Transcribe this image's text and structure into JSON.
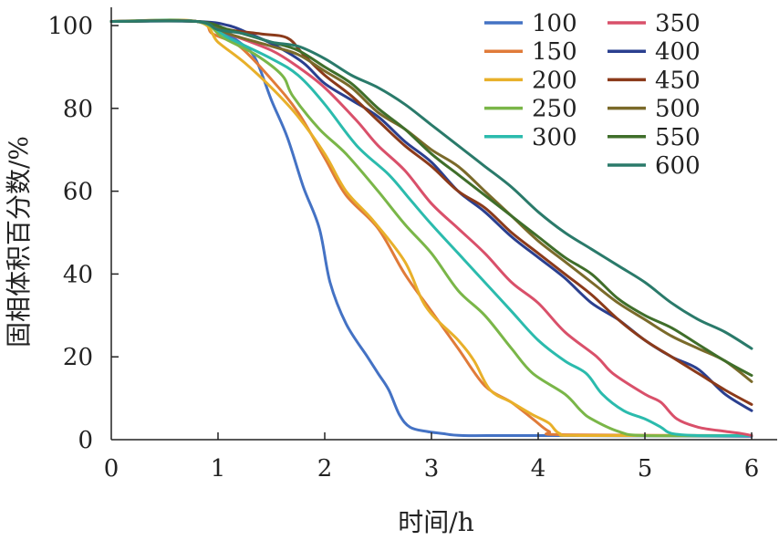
{
  "chart_data": {
    "type": "line",
    "xlabel": "时间/h",
    "ylabel": "固相体积百分数/%",
    "xlim": [
      0,
      6
    ],
    "ylim": [
      0,
      100
    ],
    "x_ticks": [
      "0",
      "1",
      "2",
      "3",
      "4",
      "5",
      "6"
    ],
    "y_ticks": [
      "0",
      "20",
      "40",
      "60",
      "80",
      "100"
    ],
    "grid": false,
    "legend_position": "top-right",
    "series": [
      {
        "name": "100",
        "color": "#4472c4",
        "points": [
          [
            0,
            101
          ],
          [
            0.8,
            101
          ],
          [
            1.0,
            99
          ],
          [
            1.2,
            96
          ],
          [
            1.35,
            92
          ],
          [
            1.5,
            82
          ],
          [
            1.65,
            73
          ],
          [
            1.8,
            61
          ],
          [
            1.95,
            51
          ],
          [
            2.05,
            38
          ],
          [
            2.2,
            28
          ],
          [
            2.4,
            20
          ],
          [
            2.5,
            16
          ],
          [
            2.6,
            12
          ],
          [
            2.7,
            6
          ],
          [
            2.8,
            3
          ],
          [
            2.95,
            2
          ],
          [
            3.1,
            1.5
          ],
          [
            3.3,
            1
          ],
          [
            4,
            1
          ],
          [
            6,
            0.8
          ]
        ]
      },
      {
        "name": "150",
        "color": "#e07b39",
        "points": [
          [
            0,
            101
          ],
          [
            0.8,
            101
          ],
          [
            0.95,
            98
          ],
          [
            1.2,
            95
          ],
          [
            1.5,
            87
          ],
          [
            1.75,
            79
          ],
          [
            2.0,
            68
          ],
          [
            2.2,
            59
          ],
          [
            2.5,
            51
          ],
          [
            2.75,
            40
          ],
          [
            3.0,
            31
          ],
          [
            3.25,
            22
          ],
          [
            3.5,
            13
          ],
          [
            3.75,
            9
          ],
          [
            3.95,
            5
          ],
          [
            4.1,
            2
          ],
          [
            4.25,
            1.2
          ],
          [
            6,
            1
          ]
        ]
      },
      {
        "name": "200",
        "color": "#e8b02a",
        "points": [
          [
            0,
            101
          ],
          [
            0.8,
            101
          ],
          [
            1.0,
            96
          ],
          [
            1.25,
            91
          ],
          [
            1.5,
            85
          ],
          [
            1.75,
            78
          ],
          [
            2.0,
            69
          ],
          [
            2.2,
            60
          ],
          [
            2.45,
            53
          ],
          [
            2.75,
            43
          ],
          [
            2.95,
            32
          ],
          [
            3.25,
            24
          ],
          [
            3.4,
            19
          ],
          [
            3.55,
            12
          ],
          [
            3.75,
            9
          ],
          [
            3.95,
            6
          ],
          [
            4.1,
            4
          ],
          [
            4.2,
            1.5
          ],
          [
            4.4,
            1
          ],
          [
            6,
            1
          ]
        ]
      },
      {
        "name": "250",
        "color": "#7ab648",
        "points": [
          [
            0,
            101
          ],
          [
            0.8,
            101
          ],
          [
            1.05,
            97
          ],
          [
            1.35,
            93
          ],
          [
            1.6,
            88
          ],
          [
            1.7,
            83
          ],
          [
            1.95,
            75
          ],
          [
            2.2,
            69
          ],
          [
            2.5,
            60
          ],
          [
            2.75,
            52
          ],
          [
            3.0,
            45
          ],
          [
            3.25,
            36
          ],
          [
            3.5,
            30
          ],
          [
            3.75,
            22
          ],
          [
            3.95,
            16
          ],
          [
            4.25,
            11
          ],
          [
            4.4,
            7
          ],
          [
            4.5,
            5
          ],
          [
            4.75,
            2
          ],
          [
            5.0,
            1
          ],
          [
            6,
            1
          ]
        ]
      },
      {
        "name": "300",
        "color": "#2bbbad",
        "points": [
          [
            0,
            101
          ],
          [
            0.8,
            101
          ],
          [
            1.1,
            97
          ],
          [
            1.5,
            92
          ],
          [
            1.75,
            88
          ],
          [
            2.0,
            81
          ],
          [
            2.3,
            71
          ],
          [
            2.6,
            64
          ],
          [
            2.8,
            58
          ],
          [
            3.0,
            52
          ],
          [
            3.25,
            45
          ],
          [
            3.5,
            38
          ],
          [
            3.75,
            31
          ],
          [
            4.0,
            24
          ],
          [
            4.25,
            19
          ],
          [
            4.45,
            16
          ],
          [
            4.6,
            11
          ],
          [
            4.8,
            7
          ],
          [
            5.0,
            5
          ],
          [
            5.15,
            3
          ],
          [
            5.25,
            1.5
          ],
          [
            5.5,
            1
          ],
          [
            6,
            1
          ]
        ]
      },
      {
        "name": "350",
        "color": "#d9506a",
        "points": [
          [
            0,
            101
          ],
          [
            0.8,
            101
          ],
          [
            1.1,
            98
          ],
          [
            1.5,
            94
          ],
          [
            1.75,
            90
          ],
          [
            2.0,
            85
          ],
          [
            2.3,
            77
          ],
          [
            2.5,
            71
          ],
          [
            2.75,
            65
          ],
          [
            3.0,
            57
          ],
          [
            3.25,
            51
          ],
          [
            3.5,
            45
          ],
          [
            3.75,
            38
          ],
          [
            4.0,
            33
          ],
          [
            4.25,
            26
          ],
          [
            4.55,
            20
          ],
          [
            4.7,
            16
          ],
          [
            5.0,
            11
          ],
          [
            5.15,
            9
          ],
          [
            5.3,
            5
          ],
          [
            5.5,
            3
          ],
          [
            5.75,
            2
          ],
          [
            5.9,
            1.5
          ],
          [
            6,
            1
          ]
        ]
      },
      {
        "name": "400",
        "color": "#2a3f8f",
        "points": [
          [
            0,
            101
          ],
          [
            0.8,
            101
          ],
          [
            1.1,
            100
          ],
          [
            1.3,
            98
          ],
          [
            1.55,
            95
          ],
          [
            1.8,
            91
          ],
          [
            2.0,
            86
          ],
          [
            2.25,
            82
          ],
          [
            2.5,
            78
          ],
          [
            2.75,
            72
          ],
          [
            3.0,
            67
          ],
          [
            3.25,
            60
          ],
          [
            3.5,
            55
          ],
          [
            3.75,
            49
          ],
          [
            4.0,
            44
          ],
          [
            4.25,
            39
          ],
          [
            4.5,
            33
          ],
          [
            4.75,
            29
          ],
          [
            5.0,
            24
          ],
          [
            5.25,
            20
          ],
          [
            5.5,
            17
          ],
          [
            5.75,
            11
          ],
          [
            6,
            7
          ]
        ]
      },
      {
        "name": "450",
        "color": "#8b3a1a",
        "points": [
          [
            0,
            101
          ],
          [
            0.8,
            101
          ],
          [
            1.1,
            99
          ],
          [
            1.4,
            98
          ],
          [
            1.65,
            97
          ],
          [
            1.8,
            93
          ],
          [
            2.0,
            88
          ],
          [
            2.25,
            83
          ],
          [
            2.5,
            77
          ],
          [
            2.75,
            71
          ],
          [
            3.0,
            66
          ],
          [
            3.25,
            60
          ],
          [
            3.5,
            56
          ],
          [
            3.75,
            50
          ],
          [
            4.0,
            45
          ],
          [
            4.25,
            40
          ],
          [
            4.5,
            35
          ],
          [
            4.75,
            29
          ],
          [
            5.0,
            24
          ],
          [
            5.25,
            20
          ],
          [
            5.5,
            16
          ],
          [
            5.75,
            12
          ],
          [
            6,
            8.5
          ]
        ]
      },
      {
        "name": "500",
        "color": "#7a6a2a",
        "points": [
          [
            0,
            101
          ],
          [
            0.8,
            101
          ],
          [
            1.1,
            98
          ],
          [
            1.5,
            95
          ],
          [
            1.75,
            93
          ],
          [
            2.0,
            89
          ],
          [
            2.25,
            85
          ],
          [
            2.5,
            79
          ],
          [
            2.75,
            75
          ],
          [
            3.0,
            70
          ],
          [
            3.25,
            66
          ],
          [
            3.5,
            60
          ],
          [
            3.75,
            54
          ],
          [
            4.0,
            48
          ],
          [
            4.25,
            43
          ],
          [
            4.5,
            38
          ],
          [
            4.75,
            33
          ],
          [
            5.0,
            29
          ],
          [
            5.25,
            25
          ],
          [
            5.5,
            22
          ],
          [
            5.75,
            19
          ],
          [
            6,
            14
          ]
        ]
      },
      {
        "name": "550",
        "color": "#3f6e2a",
        "points": [
          [
            0,
            101
          ],
          [
            0.8,
            101
          ],
          [
            1.1,
            99
          ],
          [
            1.5,
            96
          ],
          [
            1.75,
            94
          ],
          [
            2.0,
            90
          ],
          [
            2.25,
            86
          ],
          [
            2.5,
            80
          ],
          [
            2.75,
            75
          ],
          [
            3.0,
            69
          ],
          [
            3.25,
            64
          ],
          [
            3.5,
            59
          ],
          [
            3.75,
            54
          ],
          [
            4.0,
            49
          ],
          [
            4.25,
            44
          ],
          [
            4.5,
            40
          ],
          [
            4.75,
            34
          ],
          [
            5.0,
            30
          ],
          [
            5.25,
            27
          ],
          [
            5.5,
            23
          ],
          [
            5.75,
            19
          ],
          [
            6,
            15.5
          ]
        ]
      },
      {
        "name": "600",
        "color": "#2a7a6a",
        "points": [
          [
            0,
            101
          ],
          [
            0.8,
            101
          ],
          [
            1.0,
            99
          ],
          [
            1.25,
            98
          ],
          [
            1.5,
            96
          ],
          [
            1.75,
            95
          ],
          [
            2.0,
            92
          ],
          [
            2.25,
            88
          ],
          [
            2.5,
            85
          ],
          [
            2.75,
            81
          ],
          [
            3.0,
            76
          ],
          [
            3.25,
            71
          ],
          [
            3.5,
            66
          ],
          [
            3.75,
            61
          ],
          [
            4.0,
            55
          ],
          [
            4.25,
            50
          ],
          [
            4.5,
            46
          ],
          [
            4.75,
            42
          ],
          [
            5.0,
            38
          ],
          [
            5.25,
            33
          ],
          [
            5.5,
            29
          ],
          [
            5.75,
            26
          ],
          [
            6,
            22
          ]
        ]
      }
    ]
  }
}
